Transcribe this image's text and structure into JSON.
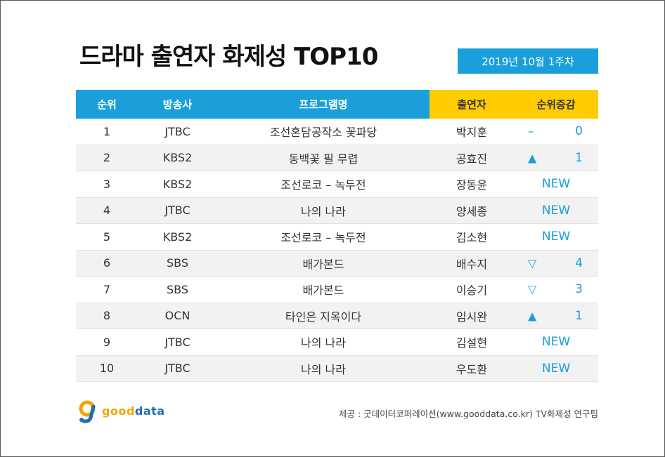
{
  "title": "드라마 출연자 화제성 TOP10",
  "week": "2019년 10월 1주차",
  "colors": {
    "accent": "#1a9fdb",
    "highlight": "#ffcc00"
  },
  "headers": {
    "rank": "순위",
    "station": "방송사",
    "program": "프로그램명",
    "actor": "출연자",
    "change": "순위증감"
  },
  "rows": [
    {
      "rank": "1",
      "station": "JTBC",
      "program": "조선혼담공작소 꽃파당",
      "actor": "박지훈",
      "change_symbol": "–",
      "change_value": "0",
      "is_new": false
    },
    {
      "rank": "2",
      "station": "KBS2",
      "program": "동백꽃 필 무렵",
      "actor": "공효진",
      "change_symbol": "▲",
      "change_value": "1",
      "is_new": false
    },
    {
      "rank": "3",
      "station": "KBS2",
      "program": "조선로코 – 녹두전",
      "actor": "장동윤",
      "change_label": "NEW",
      "is_new": true
    },
    {
      "rank": "4",
      "station": "JTBC",
      "program": "나의 나라",
      "actor": "양세종",
      "change_label": "NEW",
      "is_new": true
    },
    {
      "rank": "5",
      "station": "KBS2",
      "program": "조선로코 – 녹두전",
      "actor": "김소현",
      "change_label": "NEW",
      "is_new": true
    },
    {
      "rank": "6",
      "station": "SBS",
      "program": "배가본드",
      "actor": "배수지",
      "change_symbol": "▽",
      "change_value": "4",
      "is_new": false
    },
    {
      "rank": "7",
      "station": "SBS",
      "program": "배가본드",
      "actor": "이승기",
      "change_symbol": "▽",
      "change_value": "3",
      "is_new": false
    },
    {
      "rank": "8",
      "station": "OCN",
      "program": "타인은 지옥이다",
      "actor": "임시완",
      "change_symbol": "▲",
      "change_value": "1",
      "is_new": false
    },
    {
      "rank": "9",
      "station": "JTBC",
      "program": "나의 나라",
      "actor": "김설현",
      "change_label": "NEW",
      "is_new": true
    },
    {
      "rank": "10",
      "station": "JTBC",
      "program": "나의 나라",
      "actor": "우도환",
      "change_label": "NEW",
      "is_new": true
    }
  ],
  "logo": {
    "part1": "good",
    "part2": "data",
    "icon": "gooddata-logo-icon"
  },
  "source": "제공 : 굿데이터코퍼레이션(www.gooddata.co.kr) TV화제성 연구팀"
}
